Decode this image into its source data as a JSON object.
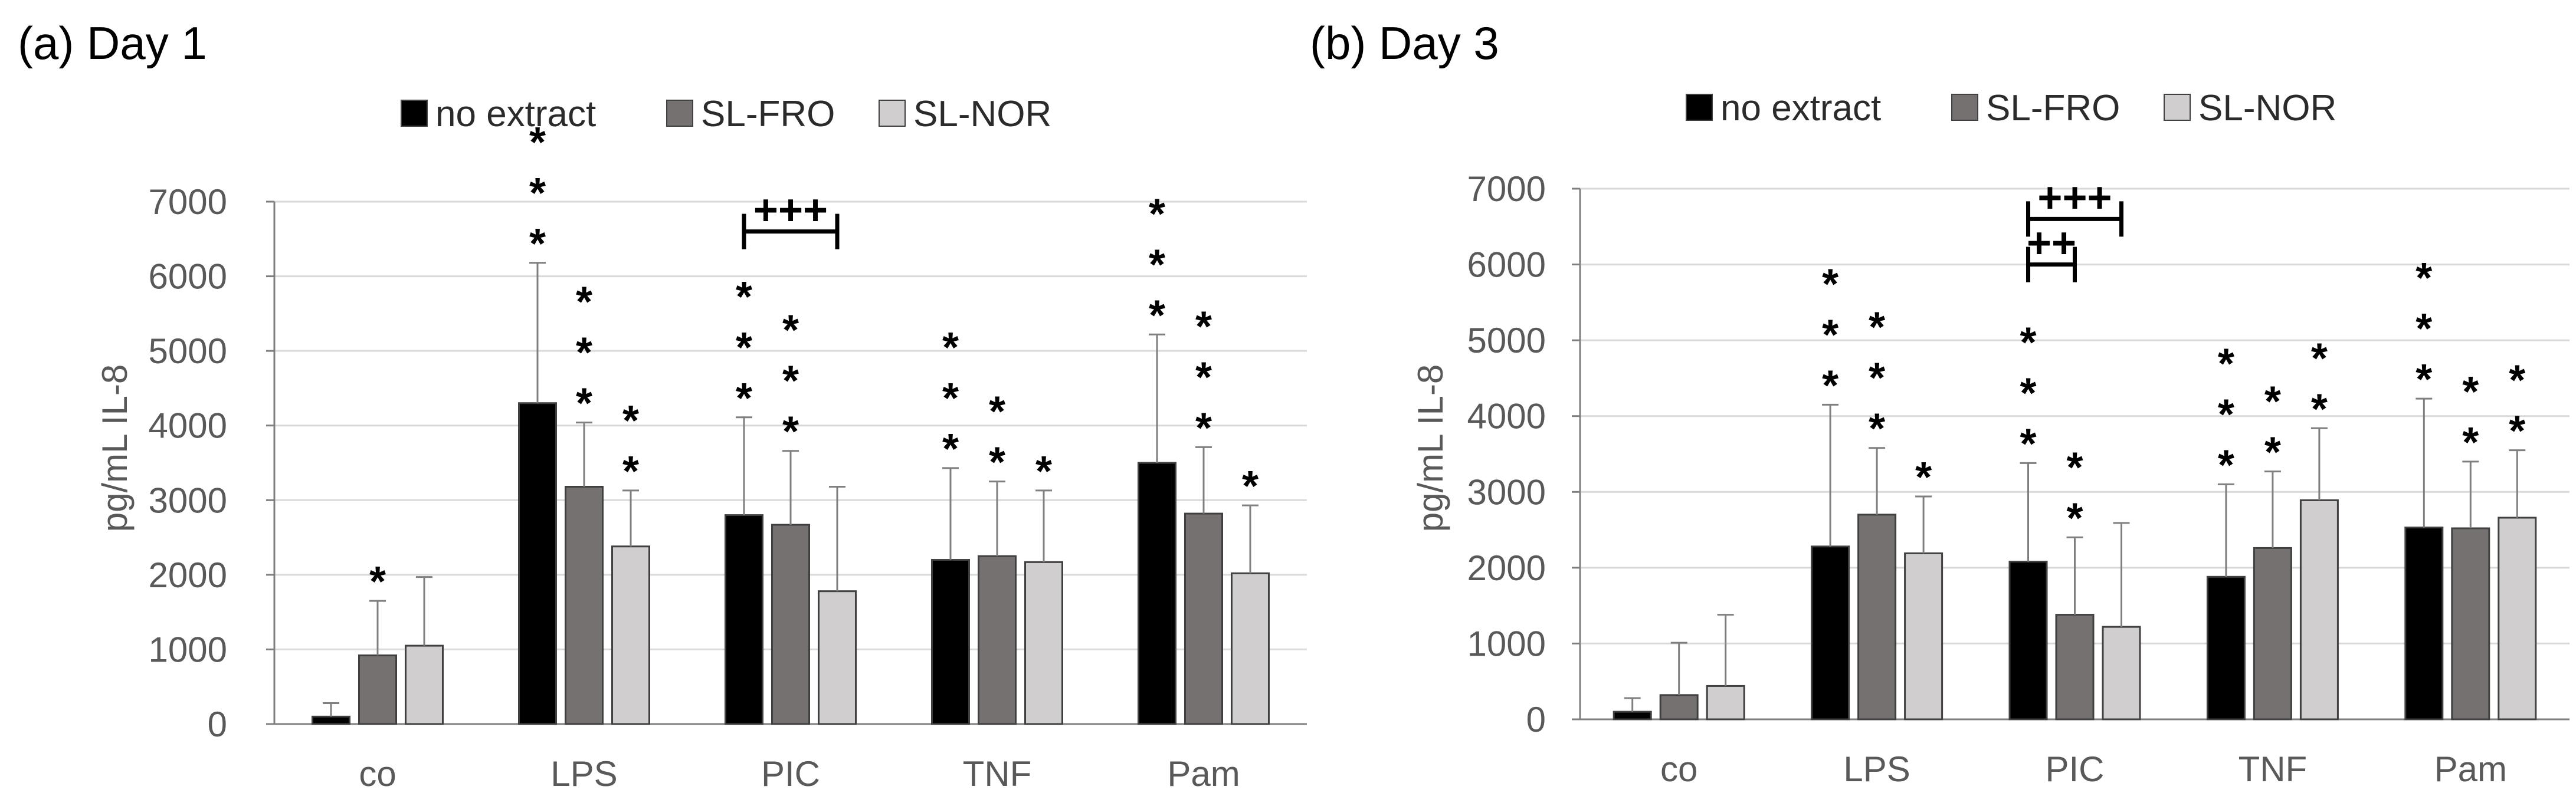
{
  "chart_data": [
    {
      "type": "bar",
      "title": "(a) Day 1",
      "ylabel": "pg/mL IL-8",
      "xlabel": "",
      "ylim": [
        0,
        7000
      ],
      "yticks": [
        "0",
        "1000",
        "2000",
        "3000",
        "4000",
        "5000",
        "6000",
        "7000"
      ],
      "categories": [
        "co",
        "LPS",
        "PIC",
        "TNF",
        "Pam"
      ],
      "series": [
        {
          "name": "no extract",
          "color": "#000000",
          "values": [
            100,
            4300,
            2800,
            2200,
            3500
          ],
          "errors": [
            180,
            1880,
            1310,
            1230,
            1720
          ],
          "stars": [
            0,
            3,
            3,
            3,
            3
          ]
        },
        {
          "name": "SL-FRO",
          "color": "#767171",
          "values": [
            920,
            3180,
            2670,
            2250,
            2820
          ],
          "errors": [
            730,
            860,
            990,
            1000,
            890
          ],
          "stars": [
            1,
            3,
            3,
            2,
            3
          ]
        },
        {
          "name": "SL-NOR",
          "color": "#d0cece",
          "values": [
            1050,
            2380,
            1780,
            2170,
            2020
          ],
          "errors": [
            920,
            750,
            1400,
            960,
            910
          ],
          "stars": [
            0,
            2,
            0,
            1,
            1
          ]
        }
      ],
      "comparisons": [
        {
          "category": "PIC",
          "from": "no extract",
          "to": "SL-NOR",
          "label": "+++"
        }
      ]
    },
    {
      "type": "bar",
      "title": "(b) Day 3",
      "ylabel": "pg/mL IL-8",
      "xlabel": "",
      "ylim": [
        0,
        7000
      ],
      "yticks": [
        "0",
        "1000",
        "2000",
        "3000",
        "4000",
        "5000",
        "6000",
        "7000"
      ],
      "categories": [
        "co",
        "LPS",
        "PIC",
        "TNF",
        "Pam"
      ],
      "series": [
        {
          "name": "no extract",
          "color": "#000000",
          "values": [
            100,
            2280,
            2080,
            1880,
            2530
          ],
          "errors": [
            180,
            1870,
            1300,
            1220,
            1700
          ],
          "stars": [
            0,
            3,
            3,
            3,
            3
          ]
        },
        {
          "name": "SL-FRO",
          "color": "#767171",
          "values": [
            320,
            2700,
            1380,
            2260,
            2520
          ],
          "errors": [
            690,
            880,
            1020,
            1010,
            880
          ],
          "stars": [
            0,
            3,
            2,
            2,
            2
          ]
        },
        {
          "name": "SL-NOR",
          "color": "#d0cece",
          "values": [
            440,
            2190,
            1220,
            2890,
            2660
          ],
          "errors": [
            940,
            750,
            1370,
            950,
            890
          ],
          "stars": [
            0,
            1,
            0,
            2,
            2
          ]
        }
      ],
      "comparisons": [
        {
          "category": "PIC",
          "from": "no extract",
          "to": "SL-NOR",
          "label": "+++"
        },
        {
          "category": "PIC",
          "from": "no extract",
          "to": "SL-FRO",
          "label": "++"
        }
      ]
    }
  ]
}
